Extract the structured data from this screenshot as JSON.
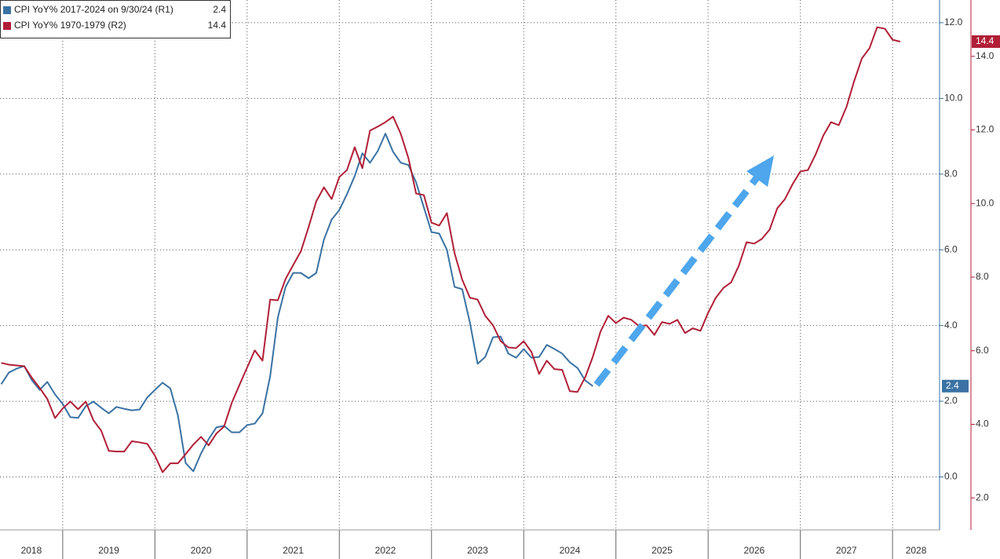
{
  "chart_data": {
    "type": "line",
    "x": [
      2018.333,
      2018.417,
      2018.5,
      2018.583,
      2018.667,
      2018.75,
      2018.833,
      2018.917,
      2019,
      2019.083,
      2019.167,
      2019.25,
      2019.333,
      2019.417,
      2019.5,
      2019.583,
      2019.667,
      2019.75,
      2019.833,
      2019.917,
      2020,
      2020.083,
      2020.167,
      2020.25,
      2020.333,
      2020.417,
      2020.5,
      2020.583,
      2020.667,
      2020.75,
      2020.833,
      2020.917,
      2021,
      2021.083,
      2021.167,
      2021.25,
      2021.333,
      2021.417,
      2021.5,
      2021.583,
      2021.667,
      2021.75,
      2021.833,
      2021.917,
      2022,
      2022.083,
      2022.167,
      2022.25,
      2022.333,
      2022.417,
      2022.5,
      2022.583,
      2022.667,
      2022.75,
      2022.833,
      2022.917,
      2023,
      2023.083,
      2023.167,
      2023.25,
      2023.333,
      2023.417,
      2023.5,
      2023.583,
      2023.667,
      2023.75,
      2023.833,
      2023.917,
      2024,
      2024.083,
      2024.167,
      2024.25,
      2024.333,
      2024.417,
      2024.5,
      2024.583,
      2024.667,
      2024.75,
      2024.833,
      2024.917,
      2025,
      2025.083,
      2025.167,
      2025.25,
      2025.333,
      2025.417,
      2025.5,
      2025.583,
      2025.667,
      2025.75,
      2025.833,
      2025.917,
      2026,
      2026.083,
      2026.167,
      2026.25,
      2026.333,
      2026.417,
      2026.5,
      2026.583,
      2026.667,
      2026.75,
      2026.833,
      2026.917,
      2027,
      2027.083,
      2027.167,
      2027.25,
      2027.333,
      2027.417,
      2027.5,
      2027.583,
      2027.667,
      2027.75,
      2027.833,
      2027.917,
      2028,
      2028.083
    ],
    "xlim": [
      2018.32,
      2028.51
    ],
    "xticks": [
      2019,
      2020,
      2021,
      2022,
      2023,
      2024,
      2025,
      2026,
      2027,
      2028
    ],
    "x_labels": [
      "2018",
      "2019",
      "2020",
      "2021",
      "2022",
      "2023",
      "2024",
      "2025",
      "2026",
      "2027",
      "2028"
    ],
    "ylim": [
      -1.4,
      12.6
    ],
    "yticks": [
      {
        "value": 0,
        "label": "0.0"
      },
      {
        "value": 2,
        "label": "2.0"
      },
      {
        "value": 4,
        "label": "4.0"
      },
      {
        "value": 6,
        "label": "6.0"
      },
      {
        "value": 8,
        "label": "8.0"
      },
      {
        "value": 10,
        "label": "10.0"
      },
      {
        "value": 12,
        "label": "12.0"
      }
    ],
    "y2lim": [
      1.13,
      15.53
    ],
    "y2ticks": [
      {
        "value": 2,
        "label": "2.0"
      },
      {
        "value": 4,
        "label": "4.0"
      },
      {
        "value": 6,
        "label": "6.0"
      },
      {
        "value": 8,
        "label": "8.0"
      },
      {
        "value": 10,
        "label": "10.0"
      },
      {
        "value": 12,
        "label": "12.0"
      },
      {
        "value": 14,
        "label": "14.0"
      }
    ],
    "grid": true,
    "legend": "top-left",
    "series": [
      {
        "name": "CPI YoY% 2017-2024 on 9/30/24 (R1)",
        "color": "#3a72a3",
        "axis": "y",
        "values": [
          2.45,
          2.76,
          2.86,
          2.93,
          2.55,
          2.3,
          2.51,
          2.18,
          1.93,
          1.58,
          1.56,
          1.87,
          1.99,
          1.83,
          1.68,
          1.85,
          1.8,
          1.76,
          1.78,
          2.1,
          2.3,
          2.49,
          2.34,
          1.62,
          0.37,
          0.15,
          0.62,
          1.0,
          1.31,
          1.35,
          1.18,
          1.18,
          1.37,
          1.41,
          1.68,
          2.66,
          4.21,
          5.02,
          5.39,
          5.39,
          5.25,
          5.39,
          6.27,
          6.8,
          7.05,
          7.47,
          7.95,
          8.55,
          8.3,
          8.61,
          9.07,
          8.59,
          8.3,
          8.24,
          7.78,
          7.12,
          6.47,
          6.43,
          6.0,
          5.02,
          4.96,
          4.07,
          2.99,
          3.17,
          3.69,
          3.71,
          3.26,
          3.15,
          3.38,
          3.15,
          3.17,
          3.49,
          3.38,
          3.26,
          3.03,
          2.88,
          2.55,
          2.4,
          null,
          null,
          null,
          null,
          null,
          null,
          null,
          null,
          null,
          null,
          null,
          null,
          null,
          null,
          null,
          null,
          null,
          null,
          null,
          null,
          null,
          null,
          null,
          null,
          null,
          null,
          null,
          null,
          null,
          null,
          null,
          null,
          null,
          null,
          null,
          null,
          null,
          null,
          null,
          null
        ]
      },
      {
        "name": "CPI YoY% 1970-1979 (R2)",
        "color": "#b11f37",
        "axis": "y2",
        "values": [
          5.67,
          5.62,
          5.6,
          5.58,
          5.26,
          4.99,
          4.69,
          4.17,
          4.43,
          4.62,
          4.41,
          4.62,
          4.11,
          3.83,
          3.28,
          3.26,
          3.26,
          3.54,
          3.51,
          3.47,
          3.15,
          2.7,
          2.94,
          2.94,
          3.19,
          3.45,
          3.66,
          3.43,
          3.75,
          3.94,
          4.58,
          5.07,
          5.54,
          6.01,
          5.73,
          7.39,
          7.37,
          7.95,
          8.33,
          8.7,
          9.36,
          10.06,
          10.44,
          10.12,
          10.72,
          10.91,
          11.53,
          10.96,
          11.98,
          12.09,
          12.21,
          12.36,
          11.89,
          11.23,
          10.27,
          10.23,
          9.48,
          9.4,
          9.74,
          8.65,
          7.93,
          7.44,
          7.39,
          6.95,
          6.69,
          6.26,
          6.09,
          6.07,
          6.26,
          5.97,
          5.37,
          5.73,
          5.5,
          5.48,
          4.9,
          4.88,
          5.28,
          5.84,
          6.52,
          6.95,
          6.75,
          6.9,
          6.84,
          6.67,
          6.69,
          6.43,
          6.78,
          6.73,
          6.84,
          6.48,
          6.61,
          6.54,
          7.03,
          7.44,
          7.71,
          7.86,
          8.31,
          8.95,
          8.91,
          9.04,
          9.29,
          9.87,
          10.12,
          10.53,
          10.87,
          10.91,
          11.34,
          11.85,
          12.21,
          12.13,
          12.62,
          13.32,
          13.94,
          14.22,
          14.79,
          14.75,
          14.45,
          14.4
        ]
      }
    ]
  }
}
